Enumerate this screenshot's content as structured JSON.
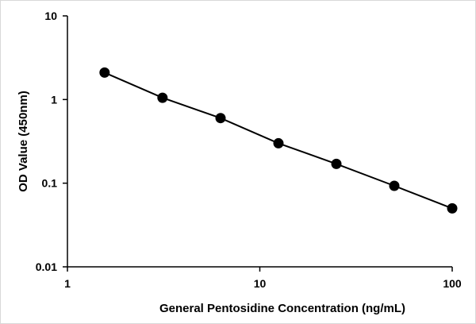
{
  "chart_data": {
    "type": "scatter",
    "title": "",
    "xlabel": "General Pentosidine Concentration (ng/mL)",
    "ylabel": "OD Value (450nm)",
    "xscale": "log",
    "yscale": "log",
    "xlim": [
      1,
      100
    ],
    "ylim": [
      0.01,
      10
    ],
    "x_ticks": [
      "1",
      "10",
      "100"
    ],
    "y_ticks": [
      "0.01",
      "0.1",
      "1",
      "10"
    ],
    "grid": false,
    "legend": "none",
    "series": [
      {
        "x": [
          1.56,
          3.12,
          6.25,
          12.5,
          25,
          50,
          100
        ],
        "y": [
          2.1,
          1.05,
          0.6,
          0.3,
          0.17,
          0.093,
          0.05
        ],
        "marker_color": "#000000",
        "line_color": "#000000"
      }
    ]
  }
}
